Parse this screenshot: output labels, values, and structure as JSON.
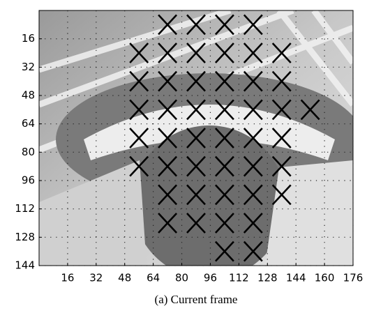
{
  "chart_data": {
    "type": "scatter",
    "caption": "(a) Current frame",
    "marker": "x",
    "marker_color": "#000000",
    "series": [
      {
        "x": [
          72,
          88,
          104,
          120,
          56,
          72,
          88,
          104,
          120,
          136,
          56,
          72,
          88,
          104,
          120,
          136,
          56,
          72,
          88,
          104,
          120,
          136,
          152,
          56,
          72,
          88,
          104,
          120,
          136,
          56,
          72,
          88,
          104,
          120,
          136,
          72,
          88,
          104,
          120,
          136,
          72,
          88,
          104,
          120,
          104,
          120
        ],
        "values": [
          8,
          8,
          8,
          8,
          24,
          24,
          24,
          24,
          24,
          24,
          40,
          40,
          40,
          40,
          40,
          40,
          56,
          56,
          56,
          56,
          56,
          56,
          56,
          72,
          72,
          72,
          72,
          72,
          72,
          88,
          88,
          88,
          88,
          88,
          88,
          104,
          104,
          104,
          104,
          104,
          120,
          120,
          120,
          120,
          136,
          136
        ]
      }
    ],
    "xlim": [
      0,
      176
    ],
    "xticks": [
      16,
      32,
      48,
      64,
      80,
      96,
      112,
      128,
      144,
      160,
      176
    ],
    "ylim": [
      144,
      0
    ],
    "yticks": [
      16,
      32,
      48,
      64,
      80,
      96,
      112,
      128,
      144
    ],
    "grid": true
  }
}
